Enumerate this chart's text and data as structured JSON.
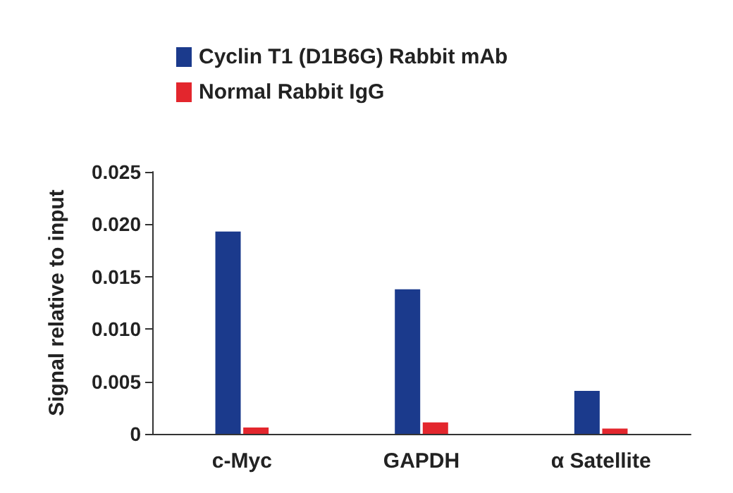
{
  "chart_data": {
    "type": "bar",
    "ylabel": "Signal relative to input",
    "categories": [
      "c-Myc",
      "GAPDH",
      "α Satellite"
    ],
    "series": [
      {
        "name": "Cyclin T1 (D1B6G) Rabbit mAb",
        "color": "#1b3a8c",
        "values": [
          0.0193,
          0.0138,
          0.0041
        ]
      },
      {
        "name": "Normal Rabbit IgG",
        "color": "#e3262d",
        "values": [
          0.0006,
          0.0011,
          0.0005
        ]
      }
    ],
    "ylim": [
      0,
      0.025
    ],
    "yticks": [
      0,
      0.005,
      {
        "value": 0.01,
        "label": "0.010"
      },
      0.015,
      {
        "value": 0.02,
        "label": "0.020"
      },
      0.025
    ],
    "grid": false,
    "legend": "top left"
  }
}
